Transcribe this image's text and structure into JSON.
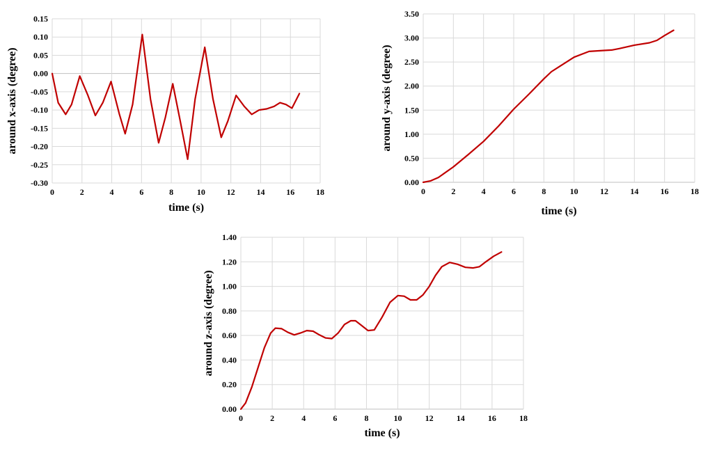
{
  "colors": {
    "series": "#c00000",
    "grid": "#d9d9d9",
    "text": "#000000"
  },
  "chart_data": [
    {
      "type": "line",
      "xlabel": "time (s)",
      "ylabel": "around x-axis (degree)",
      "xlim": [
        0,
        18
      ],
      "ylim": [
        -0.3,
        0.15
      ],
      "xticks": [
        "0",
        "2",
        "4",
        "6",
        "8",
        "10",
        "12",
        "14",
        "16",
        "18"
      ],
      "yticks": [
        "-0.30",
        "-0.25",
        "-0.20",
        "-0.15",
        "-0.10",
        "-0.05",
        "0.00",
        "0.05",
        "0.10",
        "0.15"
      ],
      "grid": true,
      "series": [
        {
          "x": [
            0,
            0.4,
            0.9,
            1.3,
            1.85,
            2.4,
            2.9,
            3.4,
            3.95,
            4.5,
            4.9,
            5.4,
            6.05,
            6.6,
            7.15,
            7.6,
            8.1,
            8.6,
            9.1,
            9.6,
            10.25,
            10.8,
            11.35,
            11.8,
            12.35,
            12.9,
            13.4,
            13.9,
            14.4,
            14.9,
            15.3,
            15.7,
            16.1,
            16.6
          ],
          "y": [
            0.0,
            -0.08,
            -0.112,
            -0.085,
            -0.007,
            -0.06,
            -0.115,
            -0.08,
            -0.022,
            -0.11,
            -0.165,
            -0.085,
            0.107,
            -0.07,
            -0.19,
            -0.12,
            -0.028,
            -0.13,
            -0.235,
            -0.07,
            0.072,
            -0.07,
            -0.175,
            -0.13,
            -0.06,
            -0.09,
            -0.112,
            -0.1,
            -0.097,
            -0.09,
            -0.08,
            -0.085,
            -0.095,
            -0.055
          ]
        }
      ]
    },
    {
      "type": "line",
      "xlabel": "time (s)",
      "ylabel": "around y-axis (degree)",
      "xlim": [
        0,
        18
      ],
      "ylim": [
        0,
        3.5
      ],
      "xticks": [
        "0",
        "2",
        "4",
        "6",
        "8",
        "10",
        "12",
        "14",
        "16",
        "18"
      ],
      "yticks": [
        "0.00",
        "0.50",
        "1.00",
        "1.50",
        "2.00",
        "2.50",
        "3.00",
        "3.50"
      ],
      "grid": true,
      "series": [
        {
          "x": [
            0,
            0.5,
            1,
            2,
            3,
            4,
            5,
            6,
            7,
            8,
            8.5,
            9,
            10,
            11,
            12,
            12.5,
            13,
            14,
            15,
            15.5,
            16,
            16.6
          ],
          "y": [
            0.0,
            0.03,
            0.1,
            0.32,
            0.58,
            0.85,
            1.17,
            1.52,
            1.83,
            2.15,
            2.3,
            2.4,
            2.6,
            2.72,
            2.74,
            2.75,
            2.78,
            2.85,
            2.9,
            2.95,
            3.05,
            3.16
          ]
        }
      ]
    },
    {
      "type": "line",
      "xlabel": "time (s)",
      "ylabel": "around z-axis (degree)",
      "xlim": [
        0,
        18
      ],
      "ylim": [
        0,
        1.4
      ],
      "xticks": [
        "0",
        "2",
        "4",
        "6",
        "8",
        "10",
        "12",
        "14",
        "16",
        "18"
      ],
      "yticks": [
        "0.00",
        "0.20",
        "0.40",
        "0.60",
        "0.80",
        "1.00",
        "1.20",
        "1.40"
      ],
      "grid": true,
      "series": [
        {
          "x": [
            0,
            0.3,
            0.7,
            1.1,
            1.5,
            1.9,
            2.2,
            2.6,
            3.0,
            3.4,
            3.8,
            4.2,
            4.6,
            5.0,
            5.4,
            5.8,
            6.2,
            6.6,
            7.0,
            7.3,
            7.7,
            8.1,
            8.5,
            9.0,
            9.5,
            10.0,
            10.4,
            10.8,
            11.2,
            11.6,
            12.0,
            12.4,
            12.8,
            13.3,
            13.8,
            14.3,
            14.8,
            15.2,
            15.6,
            16.1,
            16.6
          ],
          "y": [
            0.0,
            0.05,
            0.18,
            0.34,
            0.5,
            0.62,
            0.66,
            0.655,
            0.625,
            0.605,
            0.62,
            0.64,
            0.635,
            0.605,
            0.58,
            0.575,
            0.62,
            0.69,
            0.72,
            0.72,
            0.68,
            0.64,
            0.645,
            0.75,
            0.87,
            0.925,
            0.92,
            0.89,
            0.89,
            0.93,
            1.0,
            1.09,
            1.16,
            1.195,
            1.18,
            1.155,
            1.15,
            1.16,
            1.2,
            1.245,
            1.28
          ]
        }
      ]
    }
  ]
}
